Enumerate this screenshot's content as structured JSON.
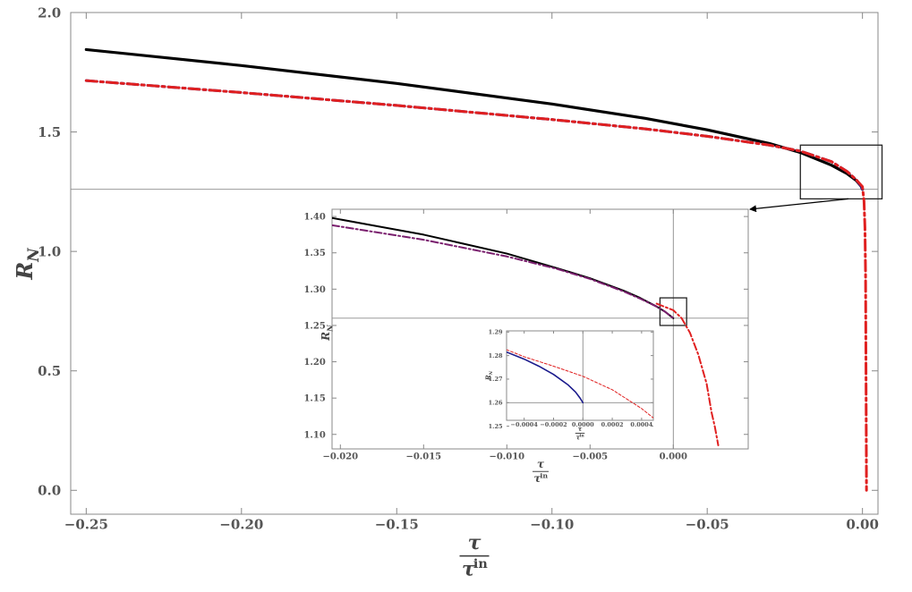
{
  "chart_data": [
    {
      "panel": "main",
      "type": "line",
      "xlabel_num": "τ",
      "xlabel_den": "τ",
      "xlabel_den_sup": "in",
      "ylabel": "R",
      "ylabel_sub": "N",
      "xlim": [
        -0.255,
        0.005
      ],
      "ylim": [
        -0.1,
        2.0
      ],
      "xticks": [
        -0.25,
        -0.2,
        -0.15,
        -0.1,
        -0.05,
        0.0
      ],
      "xtick_labels": [
        "−0.25",
        "−0.20",
        "−0.15",
        "−0.10",
        "−0.05",
        "0.00"
      ],
      "yticks": [
        0.0,
        0.5,
        1.0,
        1.5,
        2.0
      ],
      "ytick_labels": [
        "0.0",
        "0.5",
        "1.0",
        "1.5",
        "2.0"
      ],
      "reference_y": 1.26,
      "zoom_box": {
        "x": [
          -0.02,
          0.0063
        ],
        "y": [
          1.22,
          1.445
        ]
      },
      "series": [
        {
          "style": "black-solid",
          "color": "#000000",
          "x": [
            -0.25,
            -0.2,
            -0.15,
            -0.1,
            -0.07,
            -0.05,
            -0.03,
            -0.02,
            -0.01,
            -0.005,
            -0.002,
            -0.0005,
            0.0
          ],
          "y": [
            1.845,
            1.778,
            1.703,
            1.617,
            1.557,
            1.509,
            1.452,
            1.414,
            1.361,
            1.326,
            1.297,
            1.274,
            1.26
          ]
        },
        {
          "style": "blue-dashdot",
          "color": "#1a1aa6",
          "x": [
            -0.25,
            -0.2,
            -0.15,
            -0.1,
            -0.07,
            -0.05,
            -0.03,
            -0.02,
            -0.01,
            -0.005,
            -0.002,
            -0.0005,
            0.0
          ],
          "y": [
            1.715,
            1.665,
            1.611,
            1.552,
            1.513,
            1.482,
            1.445,
            1.42,
            1.376,
            1.335,
            1.3,
            1.275,
            1.26
          ]
        },
        {
          "style": "red-dashdot",
          "color": "#e02020",
          "x": [
            -0.25,
            -0.2,
            -0.15,
            -0.1,
            -0.07,
            -0.05,
            -0.03,
            -0.02,
            -0.01,
            -0.005,
            -0.002,
            0.0,
            0.0005,
            0.0008,
            0.001,
            0.0011,
            0.0012,
            0.0013
          ],
          "y": [
            1.715,
            1.665,
            1.611,
            1.552,
            1.513,
            1.482,
            1.445,
            1.42,
            1.376,
            1.335,
            1.3,
            1.271,
            1.21,
            1.1,
            0.9,
            0.6,
            0.3,
            0.0
          ]
        }
      ]
    },
    {
      "panel": "inset1",
      "type": "line",
      "xlabel_num": "τ",
      "xlabel_den": "τ",
      "xlabel_den_sup": "in",
      "ylabel": "R",
      "ylabel_sub": "N",
      "xlim": [
        -0.0205,
        0.0045
      ],
      "ylim": [
        1.08,
        1.41
      ],
      "xticks": [
        -0.02,
        -0.015,
        -0.01,
        -0.005,
        0.0
      ],
      "xtick_labels": [
        "−0.020",
        "−0.015",
        "−0.010",
        "−0.005",
        "0.000"
      ],
      "yticks": [
        1.1,
        1.15,
        1.2,
        1.25,
        1.3,
        1.35,
        1.4
      ],
      "ytick_labels": [
        "1.10",
        "1.15",
        "1.20",
        "1.25",
        "1.30",
        "1.35",
        "1.40"
      ],
      "reference_x": 0.0,
      "reference_y": 1.26,
      "zoom_box": {
        "x": [
          -0.0008,
          0.0008
        ],
        "y": [
          1.25,
          1.288
        ]
      },
      "series": [
        {
          "style": "black-solid",
          "color": "#000000",
          "x": [
            -0.0205,
            -0.015,
            -0.01,
            -0.007,
            -0.005,
            -0.003,
            -0.002,
            -0.001,
            -0.0005,
            0.0
          ],
          "y": [
            1.398,
            1.375,
            1.349,
            1.329,
            1.315,
            1.298,
            1.288,
            1.276,
            1.269,
            1.26
          ]
        },
        {
          "style": "purple-dashdot",
          "color": "#7a1f6e",
          "x": [
            -0.0205,
            -0.015,
            -0.01,
            -0.007,
            -0.005,
            -0.003,
            -0.002,
            -0.001,
            -0.0005,
            0.0
          ],
          "y": [
            1.388,
            1.368,
            1.345,
            1.328,
            1.314,
            1.297,
            1.287,
            1.276,
            1.269,
            1.26
          ]
        },
        {
          "style": "red-dashdot",
          "color": "#e02020",
          "x": [
            -0.001,
            0.0,
            0.0005,
            0.001,
            0.0015,
            0.002,
            0.0023,
            0.0025,
            0.0027
          ],
          "y": [
            1.28,
            1.271,
            1.26,
            1.24,
            1.21,
            1.17,
            1.13,
            1.11,
            1.085
          ]
        }
      ]
    },
    {
      "panel": "inset2",
      "type": "line",
      "xlabel_num": "τ",
      "xlabel_den": "τ",
      "xlabel_den_sup": "in",
      "ylabel": "R",
      "ylabel_sub": "N",
      "xlim": [
        -0.00052,
        0.00048
      ],
      "ylim": [
        1.2525,
        1.2905
      ],
      "xticks": [
        -0.0004,
        -0.0002,
        0.0,
        0.0002,
        0.0004
      ],
      "xtick_labels": [
        "−0.0004",
        "−0.0002",
        "0.0000",
        "0.0002",
        "0.0004"
      ],
      "yticks": [
        1.25,
        1.26,
        1.27,
        1.28,
        1.29
      ],
      "ytick_labels": [
        "1.25",
        "1.26",
        "1.27",
        "1.28",
        "1.29"
      ],
      "reference_x": 0.0,
      "reference_y": 1.26,
      "series": [
        {
          "style": "blue-solid",
          "color": "#1a1a8c",
          "x": [
            -0.00052,
            -0.0004,
            -0.0003,
            -0.0002,
            -0.0001,
            -5e-05,
            -2e-05,
            0.0
          ],
          "y": [
            1.2815,
            1.2785,
            1.2755,
            1.272,
            1.2675,
            1.2645,
            1.262,
            1.26
          ]
        },
        {
          "style": "red-dashed",
          "color": "#e02020",
          "x": [
            -0.00052,
            -0.0004,
            -0.0002,
            0.0,
            0.0002,
            0.0004,
            0.00048
          ],
          "y": [
            1.2825,
            1.2795,
            1.2755,
            1.2712,
            1.2655,
            1.2575,
            1.2535
          ]
        }
      ]
    }
  ]
}
